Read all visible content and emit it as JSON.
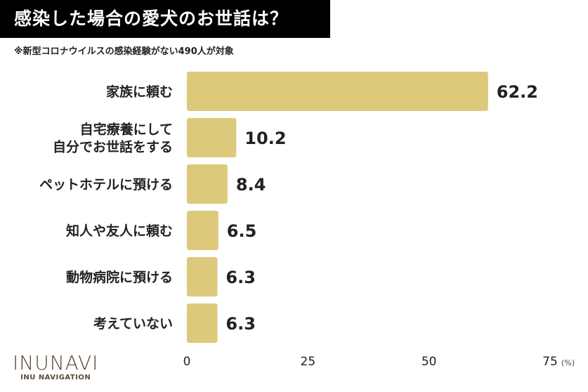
{
  "header": {
    "title": "感染した場合の愛犬のお世話は？",
    "subtitle": "※新型コロナウイルスの感染経験がない490人が対象"
  },
  "logo": {
    "name": "INUNAVI",
    "tagline": "INU NAVIGATION"
  },
  "chart_data": {
    "type": "bar",
    "orientation": "horizontal",
    "title": "感染した場合の愛犬のお世話は？",
    "categories": [
      [
        "家族に頼む"
      ],
      [
        "自宅療養にして",
        "自分でお世話をする"
      ],
      [
        "ペットホテルに預ける"
      ],
      [
        "知人や友人に頼む"
      ],
      [
        "動物病院に預ける"
      ],
      [
        "考えていない"
      ]
    ],
    "values": [
      62.2,
      10.2,
      8.4,
      6.5,
      6.3,
      6.3
    ],
    "xlim": [
      0,
      75
    ],
    "xticks": [
      0,
      25,
      50,
      75
    ],
    "xunit": "(%)",
    "bar_color": "#dcc97b",
    "grid": false
  }
}
